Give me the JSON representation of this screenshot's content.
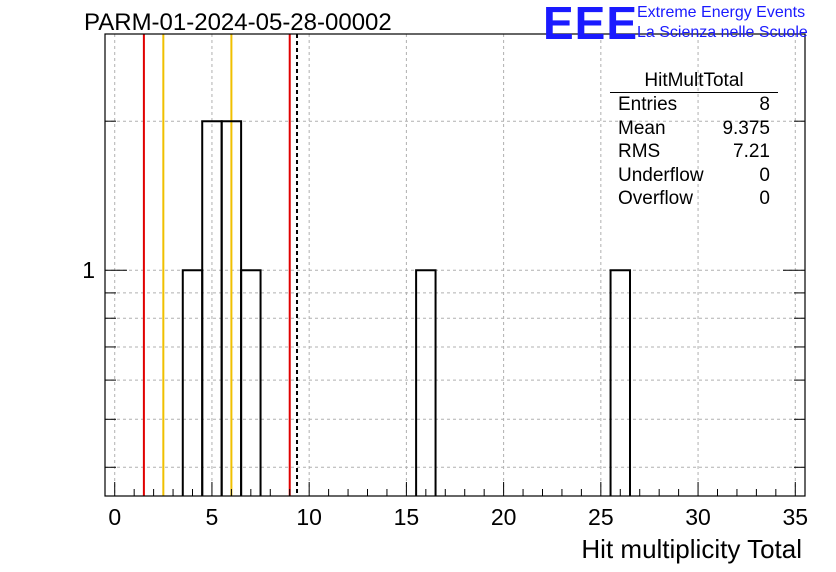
{
  "header": {
    "run_title": "PARM-01-2024-05-28-00002",
    "logo_mark": "EEE",
    "logo_line1": "Extreme Energy Events",
    "logo_line2": "La Scienza nelle Scuole"
  },
  "stats": {
    "title": "HitMultTotal",
    "rows": [
      {
        "label": "Entries",
        "value": "8"
      },
      {
        "label": "Mean",
        "value": "9.375"
      },
      {
        "label": "RMS",
        "value": "7.21"
      },
      {
        "label": "Underflow",
        "value": "0"
      },
      {
        "label": "Overflow",
        "value": "0"
      }
    ]
  },
  "chart_data": {
    "type": "histogram",
    "title": "PARM-01-2024-05-28-00002",
    "xlabel": "Hit multiplicity Total",
    "ylabel": "",
    "xlim": [
      -0.5,
      35.5
    ],
    "ylim": [
      0.35,
      3
    ],
    "yscale": "log",
    "grid": true,
    "x_ticks": [
      0,
      5,
      10,
      15,
      20,
      25,
      30,
      35
    ],
    "y_tick_labels": [
      {
        "value": 1,
        "label": "1"
      }
    ],
    "bins": [
      {
        "x0": 3.5,
        "x1": 4.5,
        "count": 1
      },
      {
        "x0": 4.5,
        "x1": 5.5,
        "count": 2
      },
      {
        "x0": 5.5,
        "x1": 6.5,
        "count": 2
      },
      {
        "x0": 6.5,
        "x1": 7.5,
        "count": 1
      },
      {
        "x0": 15.5,
        "x1": 16.5,
        "count": 1
      },
      {
        "x0": 25.5,
        "x1": 26.5,
        "count": 1
      }
    ],
    "vertical_lines": [
      {
        "x": 1.5,
        "color": "#e00000",
        "style": "solid"
      },
      {
        "x": 2.5,
        "color": "#f0c000",
        "style": "solid"
      },
      {
        "x": 6.0,
        "color": "#f0c000",
        "style": "solid"
      },
      {
        "x": 9.0,
        "color": "#e00000",
        "style": "solid"
      },
      {
        "x": 9.375,
        "color": "#000000",
        "style": "dashed"
      }
    ]
  }
}
